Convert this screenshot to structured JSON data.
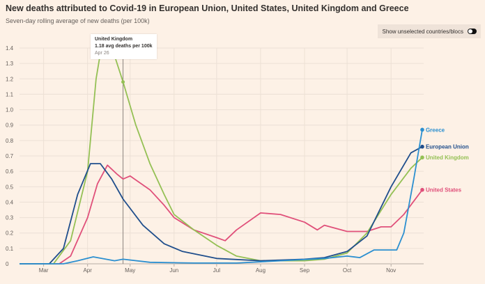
{
  "title": "New deaths attributed to Covid-19 in European Union, United States, United Kingdom and Greece",
  "subtitle": "Seven-day rolling average of new deaths (per 100k)",
  "toggle": {
    "label": "Show unselected countries/blocs",
    "state": "on"
  },
  "tooltip": {
    "series": "United Kingdom",
    "value_text": "1.18 avg deaths per 100k",
    "date": "Apr 26"
  },
  "chart_data": {
    "type": "line",
    "title": "New deaths attributed to Covid-19 in European Union, United States, United Kingdom and Greece",
    "subtitle": "Seven-day rolling average of new deaths (per 100k)",
    "ylim": [
      0,
      1.4
    ],
    "xlim": [
      "2020-02-13",
      "2020-11-24"
    ],
    "yticks": [
      "0",
      "0.1",
      "0.2",
      "0.3",
      "0.4",
      "0.5",
      "0.6",
      "0.7",
      "0.8",
      "0.9",
      "1.0",
      "1.1",
      "1.2",
      "1.3",
      "1.4"
    ],
    "xticks": [
      {
        "date": "2020-03-01",
        "label": "Mar"
      },
      {
        "date": "2020-04-01",
        "label": "Apr"
      },
      {
        "date": "2020-05-01",
        "label": "May"
      },
      {
        "date": "2020-06-01",
        "label": "Jun"
      },
      {
        "date": "2020-07-01",
        "label": "Jul"
      },
      {
        "date": "2020-08-01",
        "label": "Aug"
      },
      {
        "date": "2020-09-01",
        "label": "Sep"
      },
      {
        "date": "2020-10-01",
        "label": "Oct"
      },
      {
        "date": "2020-11-01",
        "label": "Nov"
      }
    ],
    "grid": true,
    "legend": "end-labels",
    "highlight_date": "2020-04-26",
    "series": [
      {
        "name": "United States",
        "color": "#e0507a",
        "points": [
          [
            "2020-02-13",
            0
          ],
          [
            "2020-03-12",
            0
          ],
          [
            "2020-03-20",
            0.05
          ],
          [
            "2020-04-01",
            0.3
          ],
          [
            "2020-04-08",
            0.52
          ],
          [
            "2020-04-15",
            0.64
          ],
          [
            "2020-04-22",
            0.58
          ],
          [
            "2020-04-26",
            0.55
          ],
          [
            "2020-05-01",
            0.57
          ],
          [
            "2020-05-15",
            0.48
          ],
          [
            "2020-05-25",
            0.38
          ],
          [
            "2020-06-01",
            0.3
          ],
          [
            "2020-06-15",
            0.22
          ],
          [
            "2020-07-01",
            0.17
          ],
          [
            "2020-07-07",
            0.15
          ],
          [
            "2020-07-15",
            0.22
          ],
          [
            "2020-08-01",
            0.33
          ],
          [
            "2020-08-15",
            0.32
          ],
          [
            "2020-09-01",
            0.27
          ],
          [
            "2020-09-10",
            0.22
          ],
          [
            "2020-09-15",
            0.25
          ],
          [
            "2020-10-01",
            0.21
          ],
          [
            "2020-10-15",
            0.21
          ],
          [
            "2020-10-25",
            0.24
          ],
          [
            "2020-11-01",
            0.24
          ],
          [
            "2020-11-10",
            0.32
          ],
          [
            "2020-11-23",
            0.48
          ]
        ]
      },
      {
        "name": "United Kingdom",
        "color": "#94c054",
        "points": [
          [
            "2020-02-13",
            0
          ],
          [
            "2020-03-08",
            0
          ],
          [
            "2020-03-20",
            0.15
          ],
          [
            "2020-04-01",
            0.6
          ],
          [
            "2020-04-07",
            1.2
          ],
          [
            "2020-04-11",
            1.42
          ],
          [
            "2020-04-20",
            1.35
          ],
          [
            "2020-04-26",
            1.18
          ],
          [
            "2020-05-05",
            0.9
          ],
          [
            "2020-05-15",
            0.65
          ],
          [
            "2020-05-25",
            0.45
          ],
          [
            "2020-06-01",
            0.32
          ],
          [
            "2020-06-15",
            0.22
          ],
          [
            "2020-07-01",
            0.12
          ],
          [
            "2020-07-15",
            0.05
          ],
          [
            "2020-08-01",
            0.02
          ],
          [
            "2020-09-01",
            0.02
          ],
          [
            "2020-09-15",
            0.03
          ],
          [
            "2020-10-01",
            0.07
          ],
          [
            "2020-10-15",
            0.2
          ],
          [
            "2020-11-01",
            0.45
          ],
          [
            "2020-11-15",
            0.62
          ],
          [
            "2020-11-23",
            0.69
          ]
        ]
      },
      {
        "name": "European Union",
        "color": "#1f4e8c",
        "points": [
          [
            "2020-02-13",
            0
          ],
          [
            "2020-03-05",
            0
          ],
          [
            "2020-03-15",
            0.1
          ],
          [
            "2020-03-25",
            0.45
          ],
          [
            "2020-04-03",
            0.65
          ],
          [
            "2020-04-10",
            0.65
          ],
          [
            "2020-04-18",
            0.55
          ],
          [
            "2020-04-26",
            0.42
          ],
          [
            "2020-05-10",
            0.25
          ],
          [
            "2020-05-25",
            0.13
          ],
          [
            "2020-06-07",
            0.08
          ],
          [
            "2020-07-01",
            0.035
          ],
          [
            "2020-08-01",
            0.02
          ],
          [
            "2020-09-01",
            0.03
          ],
          [
            "2020-09-15",
            0.04
          ],
          [
            "2020-10-01",
            0.08
          ],
          [
            "2020-10-15",
            0.18
          ],
          [
            "2020-11-01",
            0.5
          ],
          [
            "2020-11-15",
            0.72
          ],
          [
            "2020-11-23",
            0.76
          ]
        ]
      },
      {
        "name": "Greece",
        "color": "#2b8fd0",
        "points": [
          [
            "2020-02-13",
            0
          ],
          [
            "2020-03-15",
            0
          ],
          [
            "2020-03-25",
            0.02
          ],
          [
            "2020-04-05",
            0.045
          ],
          [
            "2020-04-20",
            0.02
          ],
          [
            "2020-04-26",
            0.03
          ],
          [
            "2020-05-15",
            0.01
          ],
          [
            "2020-06-15",
            0.005
          ],
          [
            "2020-07-15",
            0.005
          ],
          [
            "2020-08-15",
            0.02
          ],
          [
            "2020-09-15",
            0.035
          ],
          [
            "2020-10-01",
            0.05
          ],
          [
            "2020-10-10",
            0.04
          ],
          [
            "2020-10-20",
            0.09
          ],
          [
            "2020-11-05",
            0.09
          ],
          [
            "2020-11-10",
            0.2
          ],
          [
            "2020-11-17",
            0.55
          ],
          [
            "2020-11-23",
            0.87
          ]
        ]
      }
    ]
  }
}
